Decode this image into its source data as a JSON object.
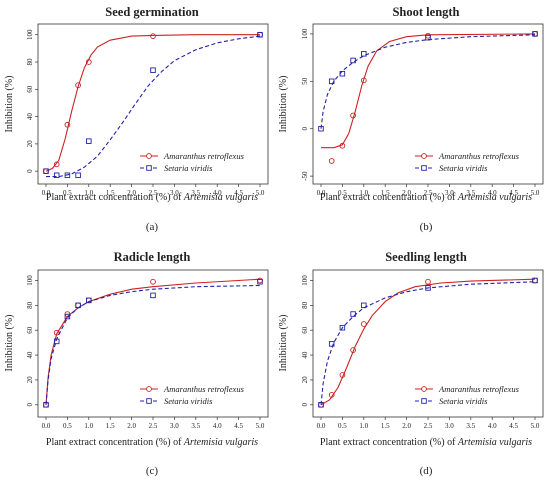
{
  "figure": {
    "x_label_prefix": "Plant extract concentration (%) of ",
    "x_label_species": "Artemisia vulgaris",
    "y_label": "Inhibition (%)"
  },
  "colors": {
    "amaranthus": "#cc2222",
    "setaria": "#2222aa"
  },
  "chart_data": [
    {
      "type": "line",
      "title": "Seed germination",
      "caption": "(a)",
      "xlim": [
        0,
        5
      ],
      "ylim": [
        -5,
        102
      ],
      "x_ticks": [
        0.0,
        0.5,
        1.0,
        1.5,
        2.0,
        2.5,
        3.0,
        3.5,
        4.0,
        4.5,
        5.0
      ],
      "y_ticks": [
        0,
        20,
        40,
        60,
        80,
        100
      ],
      "legend": "bottom-right",
      "series": [
        {
          "name": "Amaranthus retroflexus",
          "marker": "circle",
          "style": "solid",
          "points": [
            [
              0.0,
              0
            ],
            [
              0.25,
              5
            ],
            [
              0.5,
              34
            ],
            [
              0.75,
              63
            ],
            [
              1.0,
              80
            ],
            [
              2.5,
              99
            ],
            [
              5.0,
              100
            ]
          ],
          "curve": [
            [
              0,
              0
            ],
            [
              0.15,
              2
            ],
            [
              0.3,
              8
            ],
            [
              0.45,
              24
            ],
            [
              0.6,
              44
            ],
            [
              0.75,
              62
            ],
            [
              0.9,
              76
            ],
            [
              1.05,
              85
            ],
            [
              1.2,
              91
            ],
            [
              1.5,
              96
            ],
            [
              2.0,
              99
            ],
            [
              2.5,
              99.5
            ],
            [
              3.5,
              100
            ],
            [
              5.0,
              100
            ]
          ]
        },
        {
          "name": "Setaria viridis",
          "marker": "square",
          "style": "dashed",
          "points": [
            [
              0.0,
              0
            ],
            [
              0.25,
              -3
            ],
            [
              0.5,
              -3
            ],
            [
              0.75,
              -3
            ],
            [
              1.0,
              22
            ],
            [
              2.5,
              74
            ],
            [
              5.0,
              100
            ]
          ],
          "curve": [
            [
              0,
              -4
            ],
            [
              0.3,
              -4
            ],
            [
              0.6,
              -2
            ],
            [
              0.9,
              3
            ],
            [
              1.2,
              11
            ],
            [
              1.5,
              23
            ],
            [
              1.8,
              36
            ],
            [
              2.1,
              50
            ],
            [
              2.4,
              63
            ],
            [
              2.7,
              73
            ],
            [
              3.0,
              81
            ],
            [
              3.5,
              89
            ],
            [
              4.0,
              94
            ],
            [
              4.5,
              97
            ],
            [
              5.0,
              99
            ]
          ]
        }
      ]
    },
    {
      "type": "line",
      "title": "Shoot length",
      "caption": "(b)",
      "xlim": [
        0,
        5
      ],
      "ylim": [
        -52,
        102
      ],
      "x_ticks": [
        0.0,
        0.5,
        1.0,
        1.5,
        2.0,
        2.5,
        3.0,
        3.5,
        4.0,
        4.5,
        5.0
      ],
      "y_ticks": [
        -50,
        0,
        50,
        100
      ],
      "legend": "bottom-right",
      "series": [
        {
          "name": "Amaranthus retroflexus",
          "marker": "circle",
          "style": "solid",
          "points": [
            [
              0.25,
              -34
            ],
            [
              0.5,
              -18
            ],
            [
              0.75,
              14
            ],
            [
              1.0,
              51
            ],
            [
              2.5,
              98
            ],
            [
              5.0,
              100
            ]
          ],
          "curve": [
            [
              0,
              -20
            ],
            [
              0.3,
              -20
            ],
            [
              0.5,
              -17
            ],
            [
              0.65,
              -5
            ],
            [
              0.8,
              18
            ],
            [
              0.95,
              45
            ],
            [
              1.1,
              66
            ],
            [
              1.3,
              82
            ],
            [
              1.6,
              92
            ],
            [
              2.0,
              97
            ],
            [
              2.5,
              99
            ],
            [
              5.0,
              100
            ]
          ]
        },
        {
          "name": "Setaria viridis",
          "marker": "square",
          "style": "dashed",
          "points": [
            [
              0.0,
              0
            ],
            [
              0.25,
              50
            ],
            [
              0.5,
              58
            ],
            [
              0.75,
              72
            ],
            [
              1.0,
              79
            ],
            [
              2.5,
              96
            ],
            [
              5.0,
              100
            ]
          ],
          "curve": [
            [
              0,
              0
            ],
            [
              0.05,
              18
            ],
            [
              0.15,
              36
            ],
            [
              0.3,
              50
            ],
            [
              0.5,
              61
            ],
            [
              0.75,
              70
            ],
            [
              1.0,
              77
            ],
            [
              1.5,
              86
            ],
            [
              2.0,
              91
            ],
            [
              2.5,
              94
            ],
            [
              3.5,
              97
            ],
            [
              5.0,
              99
            ]
          ]
        }
      ]
    },
    {
      "type": "line",
      "title": "Radicle length",
      "caption": "(c)",
      "xlim": [
        0,
        5
      ],
      "ylim": [
        -5,
        102
      ],
      "x_ticks": [
        0.0,
        0.5,
        1.0,
        1.5,
        2.0,
        2.5,
        3.0,
        3.5,
        4.0,
        4.5,
        5.0
      ],
      "y_ticks": [
        0,
        20,
        40,
        60,
        80,
        100
      ],
      "legend": "bottom-right",
      "series": [
        {
          "name": "Amaranthus retroflexus",
          "marker": "circle",
          "style": "solid",
          "points": [
            [
              0.0,
              0
            ],
            [
              0.25,
              58
            ],
            [
              0.5,
              73
            ],
            [
              0.75,
              80
            ],
            [
              1.0,
              84
            ],
            [
              2.5,
              99
            ],
            [
              5.0,
              100
            ]
          ],
          "curve": [
            [
              0,
              0
            ],
            [
              0.05,
              22
            ],
            [
              0.12,
              40
            ],
            [
              0.25,
              57
            ],
            [
              0.5,
              71
            ],
            [
              0.75,
              78
            ],
            [
              1.0,
              83
            ],
            [
              1.5,
              89
            ],
            [
              2.0,
              93
            ],
            [
              2.5,
              95
            ],
            [
              3.5,
              98
            ],
            [
              5.0,
              101
            ]
          ]
        },
        {
          "name": "Setaria viridis",
          "marker": "square",
          "style": "dashed",
          "points": [
            [
              0.0,
              0
            ],
            [
              0.25,
              51
            ],
            [
              0.5,
              71
            ],
            [
              0.75,
              80
            ],
            [
              1.0,
              84
            ],
            [
              2.5,
              88
            ],
            [
              5.0,
              99
            ]
          ],
          "curve": [
            [
              0,
              0
            ],
            [
              0.05,
              20
            ],
            [
              0.12,
              37
            ],
            [
              0.25,
              53
            ],
            [
              0.5,
              70
            ],
            [
              0.75,
              78
            ],
            [
              1.0,
              83
            ],
            [
              1.5,
              88
            ],
            [
              2.0,
              91
            ],
            [
              2.5,
              93
            ],
            [
              3.5,
              95
            ],
            [
              5.0,
              96
            ]
          ]
        }
      ]
    },
    {
      "type": "line",
      "title": "Seedling length",
      "caption": "(d)",
      "xlim": [
        0,
        5
      ],
      "ylim": [
        -5,
        102
      ],
      "x_ticks": [
        0.0,
        0.5,
        1.0,
        1.5,
        2.0,
        2.5,
        3.0,
        3.5,
        4.0,
        4.5,
        5.0
      ],
      "y_ticks": [
        0,
        20,
        40,
        60,
        80,
        100
      ],
      "legend": "bottom-right",
      "series": [
        {
          "name": "Amaranthus retroflexus",
          "marker": "circle",
          "style": "solid",
          "points": [
            [
              0.0,
              0
            ],
            [
              0.25,
              8
            ],
            [
              0.5,
              24
            ],
            [
              0.75,
              44
            ],
            [
              1.0,
              65
            ],
            [
              2.5,
              99
            ],
            [
              5.0,
              100
            ]
          ],
          "curve": [
            [
              0,
              0
            ],
            [
              0.2,
              4
            ],
            [
              0.4,
              14
            ],
            [
              0.6,
              30
            ],
            [
              0.8,
              47
            ],
            [
              1.0,
              61
            ],
            [
              1.2,
              72
            ],
            [
              1.5,
              83
            ],
            [
              1.8,
              90
            ],
            [
              2.2,
              95
            ],
            [
              2.8,
              98
            ],
            [
              3.5,
              99.5
            ],
            [
              5.0,
              101
            ]
          ]
        },
        {
          "name": "Setaria viridis",
          "marker": "square",
          "style": "dashed",
          "points": [
            [
              0.0,
              0
            ],
            [
              0.25,
              49
            ],
            [
              0.5,
              62
            ],
            [
              0.75,
              73
            ],
            [
              1.0,
              80
            ],
            [
              2.5,
              94
            ],
            [
              5.0,
              100
            ]
          ],
          "curve": [
            [
              0,
              0
            ],
            [
              0.05,
              17
            ],
            [
              0.15,
              35
            ],
            [
              0.3,
              50
            ],
            [
              0.5,
              62
            ],
            [
              0.75,
              71
            ],
            [
              1.0,
              78
            ],
            [
              1.5,
              86
            ],
            [
              2.0,
              91
            ],
            [
              2.5,
              94
            ],
            [
              3.5,
              97
            ],
            [
              5.0,
              99
            ]
          ]
        }
      ]
    }
  ]
}
